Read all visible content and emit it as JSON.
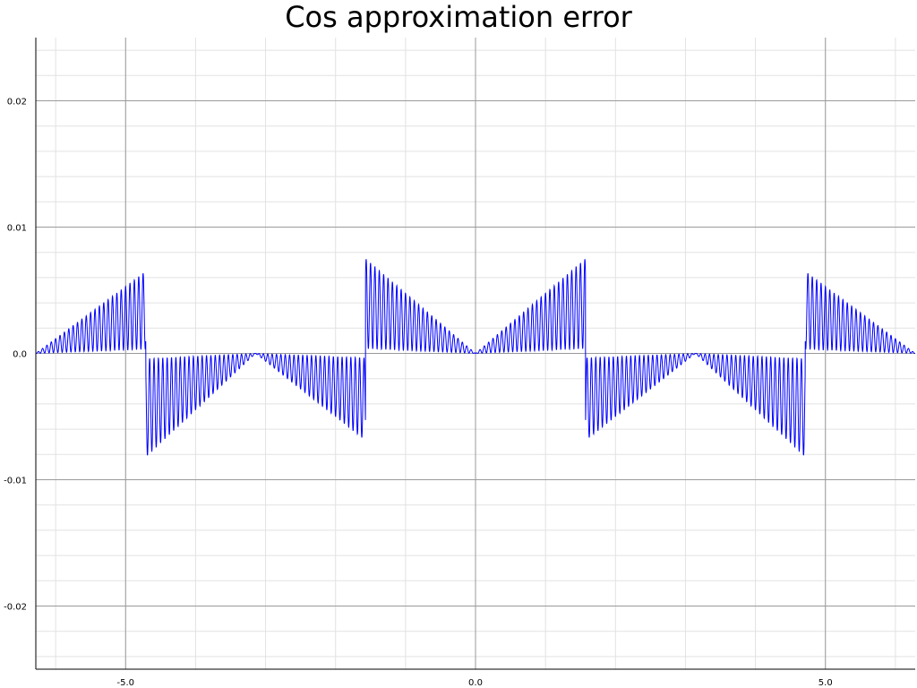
{
  "chart_data": {
    "type": "line",
    "title": "Cos approximation error",
    "xlabel": "",
    "ylabel": "",
    "xlim": [
      -6.283,
      6.283
    ],
    "ylim": [
      -0.025,
      0.025
    ],
    "x_ticks": [
      -5.0,
      0.0,
      5.0
    ],
    "x_tick_labels": [
      "-5.0",
      "0.0",
      "5.0"
    ],
    "y_ticks": [
      0.02,
      0.01,
      0.0,
      -0.01,
      -0.02
    ],
    "y_tick_labels": [
      "0.02",
      "0.01",
      "0.0",
      "-0.01",
      "-0.02"
    ],
    "grid": true,
    "minor_grid": true,
    "legend": "none",
    "series": [
      {
        "color": "#0000ff",
        "x_range": [
          -6.283,
          6.283
        ],
        "oscillation_cycles_per_unit": 16,
        "segments": [
          {
            "x0": -6.283,
            "x1": -4.712,
            "sign": 1,
            "envelope_start": 0.0,
            "envelope_end": 0.0065
          },
          {
            "x0": -4.712,
            "x1": -3.142,
            "sign": -1,
            "envelope_start": 0.0082,
            "envelope_end": 0.0
          },
          {
            "x0": -3.142,
            "x1": -1.571,
            "sign": -1,
            "envelope_start": 0.0,
            "envelope_end": 0.0069
          },
          {
            "x0": -1.571,
            "x1": 0.0,
            "sign": 1,
            "envelope_start": 0.0075,
            "envelope_end": 0.0
          },
          {
            "x0": 0.0,
            "x1": 1.571,
            "sign": 1,
            "envelope_start": 0.0,
            "envelope_end": 0.0075
          },
          {
            "x0": 1.571,
            "x1": 3.142,
            "sign": -1,
            "envelope_start": 0.0069,
            "envelope_end": 0.0
          },
          {
            "x0": 3.142,
            "x1": 4.712,
            "sign": -1,
            "envelope_start": 0.0,
            "envelope_end": 0.0082
          },
          {
            "x0": 4.712,
            "x1": 6.283,
            "sign": 1,
            "envelope_start": 0.0065,
            "envelope_end": 0.0
          }
        ]
      }
    ]
  },
  "colors": {
    "major_grid": "#9a9a9a",
    "minor_grid": "#e2e2e2",
    "axis": "#000000",
    "line": "#0000ff"
  }
}
